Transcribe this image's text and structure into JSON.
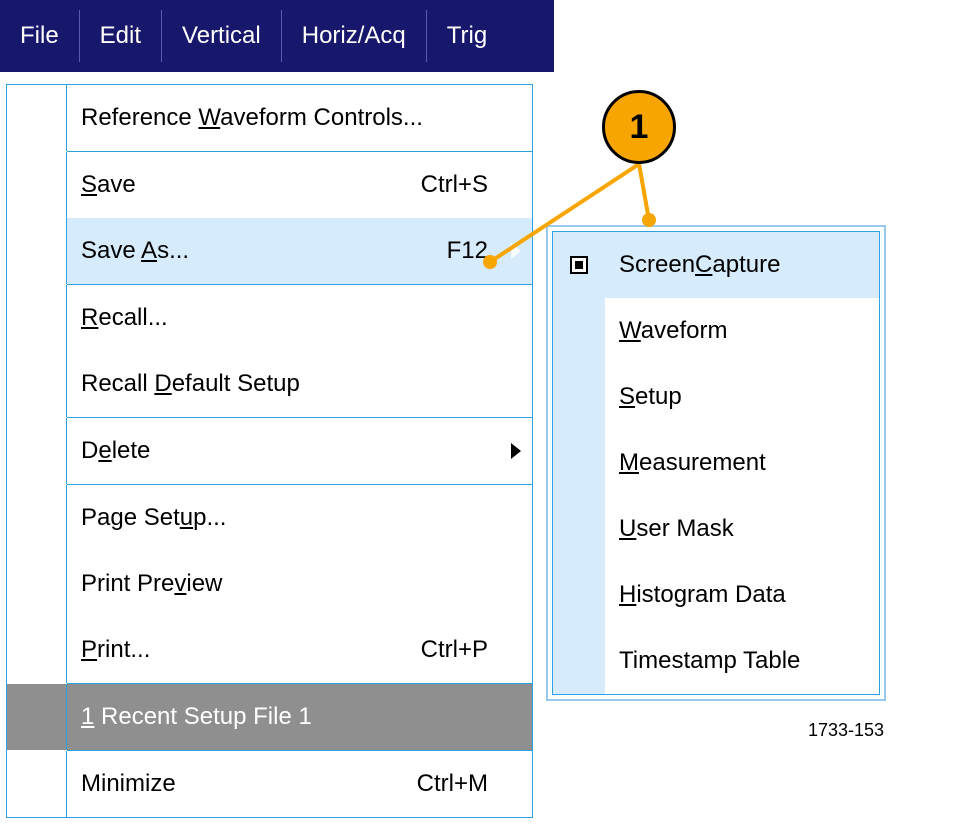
{
  "menubar": {
    "items": [
      "File",
      "Edit",
      "Vertical",
      "Horiz/Acq",
      "Trig"
    ]
  },
  "fileMenu": {
    "items": [
      {
        "text": "Reference Waveform Controls...",
        "ul": "W",
        "shortcut": "",
        "arrow": false,
        "state": "normal"
      },
      {
        "sep": true
      },
      {
        "text": "Save",
        "ul": "S",
        "shortcut": "Ctrl+S",
        "arrow": false,
        "state": "normal"
      },
      {
        "text": "Save As...",
        "ul": "A",
        "shortcut": "F12",
        "arrow": true,
        "arrowColor": "white",
        "state": "highlight"
      },
      {
        "sep": true
      },
      {
        "text": "Recall...",
        "ul": "R",
        "shortcut": "",
        "arrow": false,
        "state": "normal"
      },
      {
        "text": "Recall Default Setup",
        "ul": "D",
        "shortcut": "",
        "arrow": false,
        "state": "normal"
      },
      {
        "sep": true
      },
      {
        "text": "Delete",
        "ul": "e",
        "shortcut": "",
        "arrow": true,
        "arrowColor": "black",
        "state": "normal"
      },
      {
        "sep": true
      },
      {
        "text": "Page Setup...",
        "ul": "u",
        "shortcut": "",
        "arrow": false,
        "state": "normal"
      },
      {
        "text": "Print Preview",
        "ul": "v",
        "shortcut": "",
        "arrow": false,
        "state": "normal"
      },
      {
        "text": "Print...",
        "ul": "P",
        "shortcut": "Ctrl+P",
        "arrow": false,
        "state": "normal"
      },
      {
        "sep": true
      },
      {
        "text": "1 Recent Setup File 1",
        "ul": "1",
        "shortcut": "",
        "arrow": false,
        "state": "disabled"
      },
      {
        "sep": true
      },
      {
        "text": "Minimize",
        "ul": "",
        "shortcut": "Ctrl+M",
        "arrow": false,
        "state": "normal"
      }
    ]
  },
  "saveAsSubmenu": {
    "items": [
      {
        "text": "Screen Capture",
        "ul": "C",
        "checked": true,
        "state": "sel"
      },
      {
        "text": "Waveform",
        "ul": "W"
      },
      {
        "text": "Setup",
        "ul": "S"
      },
      {
        "text": "Measurement",
        "ul": "M"
      },
      {
        "text": "User Mask",
        "ul": "U"
      },
      {
        "text": "Histogram Data",
        "ul": "H"
      },
      {
        "text": "Timestamp Table",
        "ul": ""
      }
    ]
  },
  "callouts": {
    "badge1": "1"
  },
  "figref": "1733-153",
  "colors": {
    "menubarBg": "#17176b",
    "menuBorder": "#2da0e6",
    "highlight": "#d6ebfb",
    "badge": "#f7a500",
    "line": "#f7a500"
  }
}
